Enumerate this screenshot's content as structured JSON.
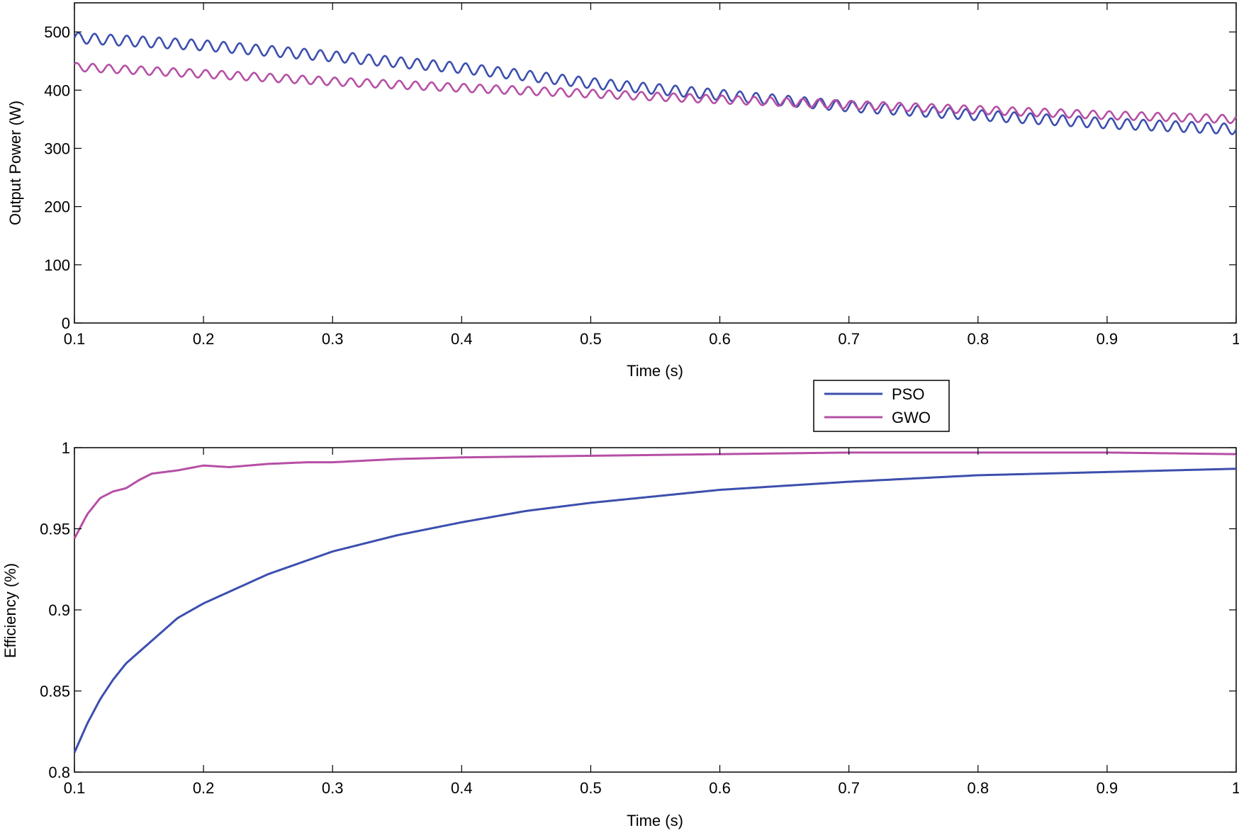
{
  "chart_data": [
    {
      "type": "line",
      "title": "",
      "xlabel": "Time (s)",
      "ylabel": "Output Power (W)",
      "xlim": [
        0.1,
        1
      ],
      "ylim": [
        0,
        550
      ],
      "xticks": [
        0.1,
        0.2,
        0.3,
        0.4,
        0.5,
        0.6,
        0.7,
        0.8,
        0.9,
        1
      ],
      "xtick_labels": [
        "0.1",
        "0.2",
        "0.3",
        "0.4",
        "0.5",
        "0.6",
        "0.7",
        "0.8",
        "0.9",
        "1"
      ],
      "yticks": [
        0,
        100,
        200,
        300,
        400,
        500
      ],
      "ytick_labels": [
        "0",
        "100",
        "200",
        "300",
        "400",
        "500"
      ],
      "grid": false,
      "series": [
        {
          "name": "PSO",
          "color": "#3c4fae",
          "x": [
            0.1,
            0.2,
            0.3,
            0.4,
            0.5,
            0.6,
            0.7,
            0.8,
            0.9,
            1
          ],
          "y": [
            490,
            477,
            458,
            438,
            412,
            392,
            372,
            357,
            343,
            333
          ],
          "ripple_amplitude": 9,
          "ripple_period": 0.0125
        },
        {
          "name": "GWO",
          "color": "#b64fa6",
          "x": [
            0.1,
            0.2,
            0.3,
            0.4,
            0.5,
            0.6,
            0.7,
            0.8,
            0.9,
            1
          ],
          "y": [
            440,
            428,
            415,
            404,
            394,
            384,
            375,
            366,
            357,
            350
          ],
          "ripple_amplitude": 7,
          "ripple_period": 0.0125
        }
      ]
    },
    {
      "type": "line",
      "title": "",
      "xlabel": "Time (s)",
      "ylabel": "Efficiency (%)",
      "xlim": [
        0.1,
        1
      ],
      "ylim": [
        0.8,
        1
      ],
      "xticks": [
        0.1,
        0.2,
        0.3,
        0.4,
        0.5,
        0.6,
        0.7,
        0.8,
        0.9,
        1
      ],
      "xtick_labels": [
        "0.1",
        "0.2",
        "0.3",
        "0.4",
        "0.5",
        "0.6",
        "0.7",
        "0.8",
        "0.9",
        "1"
      ],
      "yticks": [
        0.8,
        0.85,
        0.9,
        0.95,
        1
      ],
      "ytick_labels": [
        "0.8",
        "0.85",
        "0.9",
        "0.95",
        "1"
      ],
      "grid": false,
      "legend": {
        "position": "top-center",
        "entries": [
          "PSO",
          "GWO"
        ]
      },
      "series": [
        {
          "name": "PSO",
          "color": "#3c4fae",
          "x": [
            0.1,
            0.11,
            0.12,
            0.13,
            0.14,
            0.16,
            0.18,
            0.2,
            0.25,
            0.3,
            0.35,
            0.4,
            0.45,
            0.5,
            0.55,
            0.6,
            0.7,
            0.8,
            0.9,
            1
          ],
          "y": [
            0.812,
            0.83,
            0.845,
            0.857,
            0.867,
            0.881,
            0.895,
            0.904,
            0.922,
            0.936,
            0.946,
            0.954,
            0.961,
            0.966,
            0.97,
            0.974,
            0.979,
            0.983,
            0.985,
            0.987
          ]
        },
        {
          "name": "GWO",
          "color": "#b64fa6",
          "x": [
            0.1,
            0.11,
            0.12,
            0.13,
            0.14,
            0.15,
            0.16,
            0.18,
            0.2,
            0.22,
            0.25,
            0.28,
            0.3,
            0.35,
            0.4,
            0.5,
            0.6,
            0.7,
            0.8,
            0.9,
            1
          ],
          "y": [
            0.944,
            0.959,
            0.969,
            0.973,
            0.975,
            0.98,
            0.984,
            0.986,
            0.989,
            0.988,
            0.99,
            0.991,
            0.991,
            0.993,
            0.994,
            0.995,
            0.996,
            0.997,
            0.997,
            0.997,
            0.996
          ]
        }
      ]
    }
  ]
}
